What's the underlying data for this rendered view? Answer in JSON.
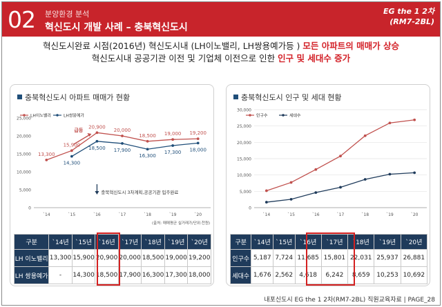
{
  "header": {
    "number": "02",
    "subtitle": "분양환경 분석",
    "title": "혁신도시 개발 사례 – 충북혁신도시",
    "brand_line1": "EG the 1 2차",
    "brand_line2": "(RM7-2BL)"
  },
  "summary": {
    "line1_a": "혁신도시완료 시점(2016년) 혁신도시내 (LH이노밸리, LH쌍용예가등 )",
    "line1_b": "모든 아파트의 매매가 상승",
    "line2_a": "혁신도시내 공공기관 이전 및 기업체 이전으로 인한",
    "line2_b": "인구 및 세대수 증가"
  },
  "left_panel": {
    "title": "충북혁신도시 아파트 매매가 현황",
    "annotation_surge": "급등",
    "annotation_note": "충북혁신도시 3차계획,공공기관 입주완료",
    "source_note": "(출처: 매매평균 실거래가/단위:천원)",
    "table": {
      "header": [
        "구분",
        "`14년",
        "`15년",
        "`16년",
        "`17년",
        "`18년",
        "`19년",
        "`20년"
      ],
      "rows": [
        {
          "label": "LH 이노밸리",
          "values": [
            "13,300",
            "15,900",
            "20,900",
            "20,000",
            "18,500",
            "19,000",
            "19,200"
          ]
        },
        {
          "label": "LH 쌍용예가",
          "values": [
            "-",
            "14,300",
            "18,500",
            "17,900",
            "16,300",
            "17,300",
            "18,000"
          ]
        }
      ]
    }
  },
  "right_panel": {
    "title": "충북혁신도시 인구 및 세대 현황",
    "table": {
      "header": [
        "구분",
        "`14년",
        "`15년",
        "`16년",
        "`17년",
        "`18년",
        "`19년",
        "`20년"
      ],
      "rows": [
        {
          "label": "인구수",
          "values": [
            "5,187",
            "7,724",
            "11,685",
            "15,801",
            "22,031",
            "25,937",
            "26,881"
          ]
        },
        {
          "label": "세대수",
          "values": [
            "1,676",
            "2,562",
            "4,618",
            "6,242",
            "8,659",
            "10,253",
            "10,692"
          ]
        }
      ]
    }
  },
  "chart_data": [
    {
      "type": "line",
      "x": [
        "`14",
        "`15",
        "`16",
        "`17",
        "`18",
        "`19",
        "`20"
      ],
      "series": [
        {
          "name": "LH이노밸리",
          "values": [
            13300,
            15900,
            20900,
            20000,
            18500,
            19000,
            19200
          ],
          "color": "#c0504d",
          "labels": [
            "13,300",
            "15,900",
            "20,900",
            "20,000",
            "18,500",
            "19,000",
            "19,200"
          ]
        },
        {
          "name": "LH쌍용예가",
          "values": [
            null,
            14300,
            18500,
            17900,
            16300,
            17300,
            18000
          ],
          "color": "#1f4e79",
          "labels": [
            "",
            "14,300",
            "18,500",
            "17,900",
            "16,300",
            "17,300",
            "18,000"
          ]
        }
      ],
      "ylim": [
        0,
        25000
      ],
      "yticks": [
        "0",
        "5,000",
        "10,000",
        "15,000",
        "20,000",
        "25,000"
      ],
      "legend": "top-left",
      "grid": false
    },
    {
      "type": "line",
      "x": [
        "`14",
        "`15",
        "`16",
        "`17",
        "`18",
        "`19",
        "`20"
      ],
      "series": [
        {
          "name": "인구수",
          "values": [
            5187,
            7724,
            11685,
            15801,
            22031,
            25937,
            26881
          ],
          "color": "#c0504d"
        },
        {
          "name": "세대수",
          "values": [
            1676,
            2562,
            4618,
            6242,
            8659,
            10253,
            10692
          ],
          "color": "#1f3b5b"
        }
      ],
      "ylim": [
        0,
        30000
      ],
      "yticks": [
        "0",
        "5,000",
        "10,000",
        "15,000",
        "20,000",
        "25,000",
        "30,000"
      ],
      "legend": "top-left",
      "grid": true
    }
  ],
  "footer": "내포신도시 EG the 1 2차(RM7-2BL) 직원교육자료 | PAGE_28"
}
